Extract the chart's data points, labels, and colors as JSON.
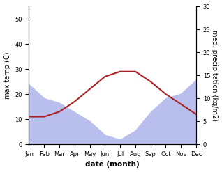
{
  "months": [
    "Jan",
    "Feb",
    "Mar",
    "Apr",
    "May",
    "Jun",
    "Jul",
    "Aug",
    "Sep",
    "Oct",
    "Nov",
    "Dec"
  ],
  "temp_max": [
    11,
    11,
    13,
    17,
    22,
    27,
    29,
    29,
    25,
    20,
    16,
    12
  ],
  "precipitation": [
    13,
    10,
    9,
    7,
    5,
    2,
    1,
    3,
    7,
    10,
    11,
    14
  ],
  "temp_fill_color": "#b8bfed",
  "temp_line_color": "#aa2222",
  "ylabel_left": "max temp (C)",
  "ylabel_right": "med. precipitation (kg/m2)",
  "xlabel": "date (month)",
  "ylim_left": [
    0,
    55
  ],
  "ylim_right": [
    0,
    30
  ],
  "background_color": "#ffffff"
}
